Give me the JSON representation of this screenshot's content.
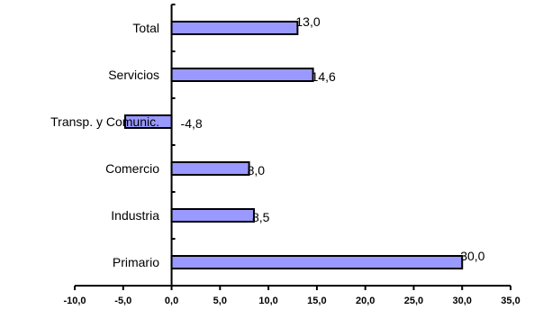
{
  "chart_data": {
    "type": "bar",
    "orientation": "horizontal",
    "categories": [
      "Total",
      "Servicios",
      "Transp. y Comunic.",
      "Comercio",
      "Industria",
      "Primario"
    ],
    "values": [
      13.0,
      14.6,
      -4.8,
      8.0,
      8.5,
      30.0
    ],
    "value_labels": [
      "13,0",
      "14,6",
      "-4,8",
      "8,0",
      "8,5",
      "30,0"
    ],
    "x_ticks": [
      "-10,0",
      "-5,0",
      "0,0",
      "5,0",
      "10,0",
      "15,0",
      "20,0",
      "25,0",
      "30,0",
      "35,0"
    ],
    "xlim": [
      -10,
      35
    ],
    "title": "",
    "xlabel": "",
    "ylabel": "",
    "grid": false,
    "legend": "none",
    "colors": {
      "bar_fill": "#9999ff",
      "bar_stroke": "#000000",
      "axis": "#000000"
    }
  }
}
